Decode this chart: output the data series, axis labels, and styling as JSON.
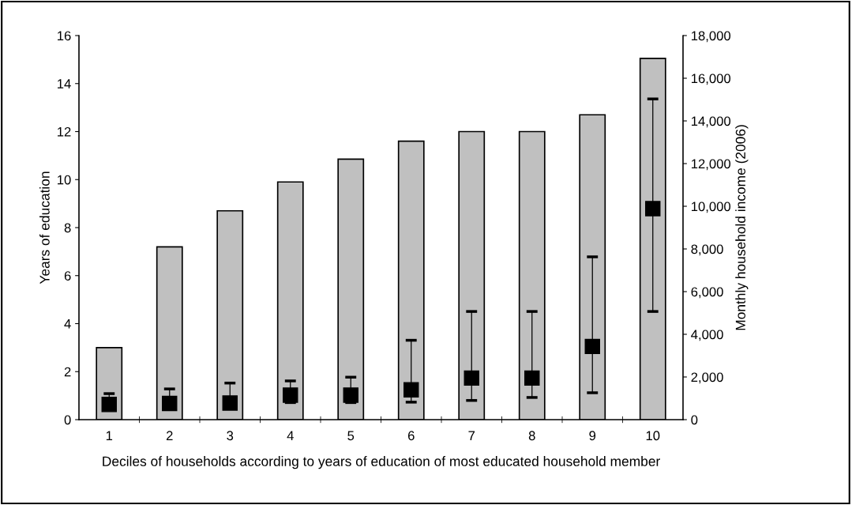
{
  "chart_data": {
    "type": "bar",
    "xlabel": "Deciles of households according to years of education of most educated household member",
    "ylabel": "Years of education",
    "y2label": "Monthly household income (2006)",
    "categories": [
      "1",
      "2",
      "3",
      "4",
      "5",
      "6",
      "7",
      "8",
      "9",
      "10"
    ],
    "series": [
      {
        "color": "#c0c0c0",
        "values": [
          3.0,
          7.2,
          8.7,
          9.9,
          10.85,
          11.6,
          12.0,
          12.0,
          12.7,
          15.05
        ]
      },
      {
        "type": "scatter",
        "axis": "y2",
        "color": "#000000",
        "marker": "square",
        "values": [
          710,
          760,
          780,
          1150,
          1150,
          1400,
          1950,
          1950,
          3430,
          9890
        ],
        "errors": [
          [
            710,
            1220
          ],
          [
            760,
            1440
          ],
          [
            780,
            1715
          ],
          [
            800,
            1815
          ],
          [
            800,
            1990
          ],
          [
            820,
            3720
          ],
          [
            900,
            5070
          ],
          [
            1040,
            5070
          ],
          [
            1260,
            7630
          ],
          [
            5070,
            15030
          ]
        ]
      }
    ],
    "ylim": [
      0,
      16
    ],
    "yticks": [
      0,
      2,
      4,
      6,
      8,
      10,
      12,
      14,
      16
    ],
    "y2lim": [
      0,
      18000
    ],
    "y2ticks": [
      {
        "value": 0,
        "label": "0"
      },
      {
        "value": 2000,
        "label": "2,000"
      },
      {
        "value": 4000,
        "label": "4,000"
      },
      {
        "value": 6000,
        "label": "6,000"
      },
      {
        "value": 8000,
        "label": "8,000"
      },
      {
        "value": 10000,
        "label": "10,000"
      },
      {
        "value": 12000,
        "label": "12,000"
      },
      {
        "value": 14000,
        "label": "14,000"
      },
      {
        "value": 16000,
        "label": "16,000"
      },
      {
        "value": 18000,
        "label": "18,000"
      }
    ],
    "grid": false,
    "legend": false
  }
}
